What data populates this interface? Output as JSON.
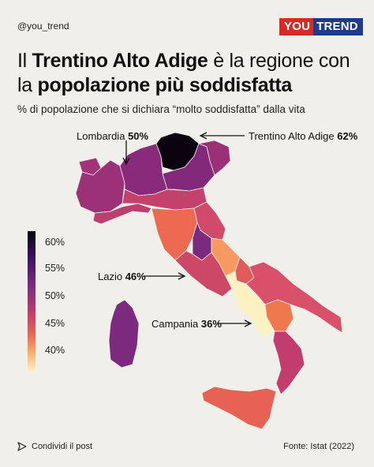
{
  "header": {
    "handle": "@you_trend",
    "logo_left": "YOU",
    "logo_right": "TREND"
  },
  "title": {
    "prefix": "Il ",
    "bold1": "Trentino Alto Adige",
    "middle": " è la regione con la ",
    "bold2": "popolazione più soddisfatta"
  },
  "subtitle": "% di popolazione che si dichiara “molto soddisfatta” dalla vita",
  "callouts": {
    "lombardia": {
      "name": "Lombardia",
      "value": "50%"
    },
    "trentino": {
      "name": "Trentino Alto Adige",
      "value": "62%"
    },
    "lazio": {
      "name": "Lazio",
      "value": "46%"
    },
    "campania": {
      "name": "Campania",
      "value": "36%"
    }
  },
  "legend": {
    "ticks": [
      "60%",
      "55%",
      "50%",
      "45%",
      "40%"
    ]
  },
  "footer": {
    "share_label": "Condividi il post",
    "source": "Fonte: Istat (2022)"
  },
  "colors": {
    "trentino": "#0b0410",
    "lombardia": "#8a2a7a",
    "lazio": "#cd4866",
    "campania": "#fcf1c2"
  }
}
